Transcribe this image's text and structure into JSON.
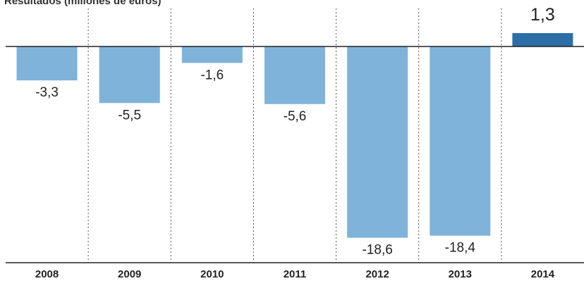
{
  "chart_data": {
    "type": "bar",
    "title": "Resultados (millones de euros)",
    "categories": [
      "2008",
      "2009",
      "2010",
      "2011",
      "2012",
      "2013",
      "2014"
    ],
    "values": [
      -3.3,
      -5.5,
      -1.6,
      -5.6,
      -18.6,
      -18.4,
      1.3
    ],
    "value_labels": [
      "-3,3",
      "-5,5",
      "-1,6",
      "-5,6",
      "-18,6",
      "-18,4",
      "1,3"
    ],
    "xlabel": "",
    "ylabel": "",
    "ylim": [
      -19.3,
      1.3
    ],
    "grid": false,
    "colors": {
      "negative": "#7fb3d9",
      "positive": "#2b6fa6",
      "axis": "#222222",
      "separator": "#555555"
    }
  }
}
